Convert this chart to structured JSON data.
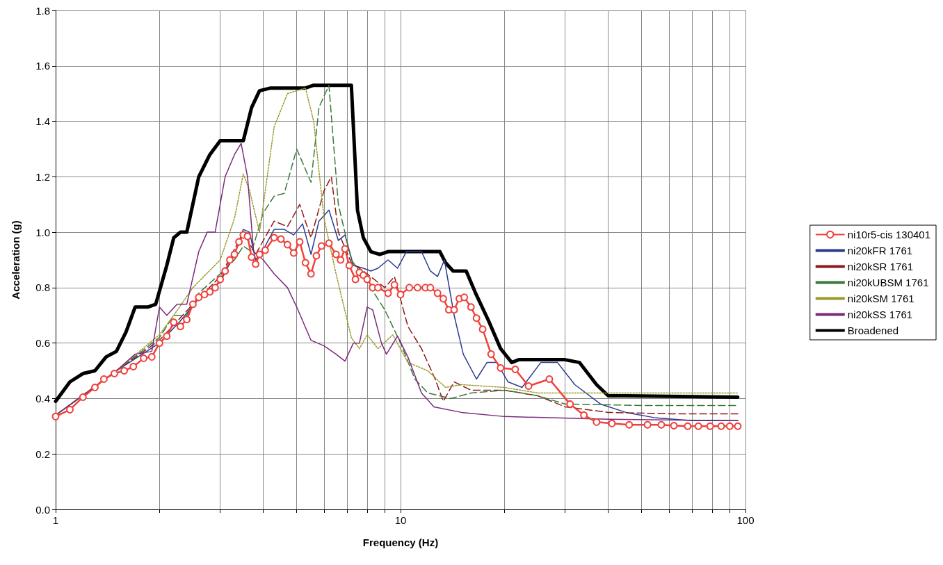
{
  "chart_data": {
    "type": "line",
    "xlabel": "Frequency (Hz)",
    "ylabel": "Acceleration (g)",
    "log": "x",
    "grid": true,
    "legend": "right",
    "xlim": [
      1,
      100
    ],
    "ylim": [
      0,
      1.8
    ],
    "xticks": [
      1,
      {
        "value": 2,
        "label": null
      },
      {
        "value": 3,
        "label": null
      },
      {
        "value": 4,
        "label": null
      },
      {
        "value": 5,
        "label": null
      },
      {
        "value": 6,
        "label": null
      },
      {
        "value": 7,
        "label": null
      },
      {
        "value": 8,
        "label": null
      },
      {
        "value": 9,
        "label": null
      },
      10,
      {
        "value": 20,
        "label": null
      },
      {
        "value": 30,
        "label": null
      },
      {
        "value": 40,
        "label": null
      },
      {
        "value": 50,
        "label": null
      },
      {
        "value": 60,
        "label": null
      },
      {
        "value": 70,
        "label": null
      },
      {
        "value": 80,
        "label": null
      },
      {
        "value": 90,
        "label": null
      },
      100
    ],
    "yticks": [
      {
        "value": 0,
        "label": "0.0"
      },
      {
        "value": 0.2,
        "label": "0.2"
      },
      {
        "value": 0.4,
        "label": "0.4"
      },
      {
        "value": 0.6,
        "label": "0.6"
      },
      {
        "value": 0.8,
        "label": "0.8"
      },
      {
        "value": 1.0,
        "label": "1.0"
      },
      {
        "value": 1.2,
        "label": "1.2"
      },
      {
        "value": 1.4,
        "label": "1.4"
      },
      {
        "value": 1.6,
        "label": "1.6"
      },
      {
        "value": 1.8,
        "label": "1.8"
      }
    ],
    "series": [
      {
        "name": "ni10r5-cis 130401",
        "color": "#f0403a",
        "marker": "circle",
        "line_style": "solid",
        "x": [
          1,
          1.1,
          1.2,
          1.3,
          1.38,
          1.48,
          1.58,
          1.68,
          1.8,
          1.9,
          2.0,
          2.1,
          2.2,
          2.3,
          2.4,
          2.5,
          2.6,
          2.7,
          2.8,
          2.9,
          3.0,
          3.1,
          3.2,
          3.3,
          3.4,
          3.5,
          3.6,
          3.7,
          3.8,
          3.9,
          4.05,
          4.3,
          4.5,
          4.7,
          4.9,
          5.1,
          5.3,
          5.5,
          5.7,
          5.9,
          6.2,
          6.5,
          6.7,
          6.9,
          7.1,
          7.4,
          7.6,
          7.8,
          8.0,
          8.3,
          8.6,
          9.2,
          9.6,
          10,
          10.6,
          11.2,
          11.8,
          12.2,
          12.8,
          13.3,
          13.8,
          14.3,
          14.8,
          15.3,
          16,
          16.6,
          17.3,
          18.3,
          19.5,
          21.5,
          23.5,
          27,
          31,
          34,
          37,
          41,
          46,
          52,
          57,
          62,
          68,
          73,
          79,
          85,
          90,
          95
        ],
        "values": [
          0.335,
          0.36,
          0.405,
          0.44,
          0.47,
          0.49,
          0.5,
          0.515,
          0.545,
          0.55,
          0.6,
          0.625,
          0.675,
          0.66,
          0.685,
          0.74,
          0.765,
          0.775,
          0.785,
          0.8,
          0.83,
          0.86,
          0.9,
          0.92,
          0.965,
          0.99,
          0.985,
          0.91,
          0.885,
          0.92,
          0.935,
          0.98,
          0.975,
          0.955,
          0.925,
          0.965,
          0.89,
          0.85,
          0.915,
          0.95,
          0.96,
          0.92,
          0.9,
          0.94,
          0.88,
          0.83,
          0.855,
          0.845,
          0.83,
          0.8,
          0.8,
          0.78,
          0.81,
          0.775,
          0.8,
          0.8,
          0.8,
          0.8,
          0.78,
          0.76,
          0.72,
          0.72,
          0.76,
          0.765,
          0.73,
          0.69,
          0.65,
          0.56,
          0.51,
          0.505,
          0.445,
          0.47,
          0.38,
          0.34,
          0.315,
          0.31,
          0.305,
          0.305,
          0.305,
          0.302,
          0.3,
          0.3,
          0.3,
          0.3,
          0.3,
          0.3
        ]
      },
      {
        "name": "ni20kFR 1761",
        "color": "#2b3a8f",
        "marker": "none",
        "line_style": "solid",
        "x": [
          1,
          1.2,
          1.5,
          2,
          2.3,
          2.6,
          3,
          3.3,
          3.5,
          3.65,
          3.8,
          4.05,
          4.3,
          4.6,
          4.9,
          5.2,
          5.5,
          5.8,
          6.2,
          6.6,
          6.9,
          7.3,
          7.8,
          8.2,
          8.6,
          9.2,
          9.8,
          10.4,
          11.5,
          12.2,
          12.8,
          13.4,
          14.3,
          15.2,
          16.6,
          17.8,
          19,
          20.5,
          22.5,
          25.5,
          28.5,
          32,
          38,
          45,
          55,
          70,
          95
        ],
        "values": [
          0.34,
          0.41,
          0.5,
          0.6,
          0.68,
          0.76,
          0.82,
          0.92,
          1.01,
          1.0,
          0.9,
          0.95,
          1.01,
          1.01,
          0.99,
          1.03,
          0.92,
          1.04,
          1.08,
          0.97,
          0.99,
          0.88,
          0.87,
          0.86,
          0.87,
          0.9,
          0.87,
          0.93,
          0.93,
          0.86,
          0.84,
          0.9,
          0.7,
          0.56,
          0.47,
          0.53,
          0.53,
          0.46,
          0.44,
          0.53,
          0.53,
          0.45,
          0.38,
          0.35,
          0.33,
          0.32,
          0.32
        ]
      },
      {
        "name": "ni20kSR 1761",
        "color": "#8b1a1a",
        "marker": "none",
        "line_style": "dashed",
        "x": [
          1,
          1.5,
          2,
          2.5,
          3,
          3.5,
          3.8,
          4.3,
          4.7,
          5.1,
          5.5,
          6.0,
          6.3,
          6.6,
          7.2,
          8,
          9,
          9.6,
          10.5,
          11.5,
          12.6,
          13.3,
          14.3,
          16,
          20,
          25,
          30,
          40,
          60,
          95
        ],
        "values": [
          0.34,
          0.5,
          0.61,
          0.74,
          0.84,
          1.0,
          0.92,
          1.04,
          1.02,
          1.1,
          0.98,
          1.15,
          1.2,
          1.0,
          0.89,
          0.85,
          0.8,
          0.84,
          0.66,
          0.58,
          0.47,
          0.39,
          0.46,
          0.43,
          0.43,
          0.41,
          0.37,
          0.35,
          0.345,
          0.345
        ]
      },
      {
        "name": "ni20kUBSM 1761",
        "color": "#3a7a3a",
        "marker": "none",
        "line_style": "dashed",
        "x": [
          1,
          1.5,
          2,
          2.2,
          2.4,
          2.6,
          3,
          3.3,
          3.5,
          3.7,
          4.0,
          4.3,
          4.6,
          5.0,
          5.5,
          5.8,
          6.2,
          6.6,
          7.2,
          8,
          9,
          10,
          11,
          12,
          14,
          16,
          20,
          25,
          30,
          50,
          95
        ],
        "values": [
          0.34,
          0.5,
          0.62,
          0.7,
          0.7,
          0.78,
          0.85,
          0.9,
          0.95,
          0.93,
          1.07,
          1.13,
          1.14,
          1.3,
          1.18,
          1.45,
          1.53,
          1.1,
          0.9,
          0.82,
          0.72,
          0.6,
          0.47,
          0.42,
          0.4,
          0.42,
          0.43,
          0.41,
          0.38,
          0.375,
          0.375
        ]
      },
      {
        "name": "ni20kSM 1761",
        "color": "#9a9a2a",
        "marker": "none",
        "line_style": "dotted",
        "x": [
          1,
          1.5,
          2,
          2.2,
          2.5,
          3,
          3.3,
          3.5,
          3.65,
          3.9,
          4.3,
          4.7,
          5.3,
          5.6,
          6.0,
          6.5,
          7.2,
          7.6,
          8,
          8.6,
          9.5,
          10.5,
          12,
          13.5,
          15,
          20,
          25,
          40,
          95
        ],
        "values": [
          0.34,
          0.5,
          0.63,
          0.7,
          0.8,
          0.9,
          1.05,
          1.21,
          1.15,
          1.0,
          1.38,
          1.5,
          1.52,
          1.4,
          1.05,
          0.85,
          0.62,
          0.58,
          0.63,
          0.58,
          0.63,
          0.53,
          0.5,
          0.44,
          0.45,
          0.44,
          0.42,
          0.42,
          0.42
        ]
      },
      {
        "name": "ni20kSS 1761",
        "color": "#7a2a7a",
        "marker": "none",
        "line_style": "solid",
        "x": [
          1,
          1.5,
          1.7,
          1.9,
          2.0,
          2.1,
          2.25,
          2.4,
          2.6,
          2.75,
          2.9,
          3.1,
          3.3,
          3.45,
          3.6,
          3.75,
          4.0,
          4.3,
          4.7,
          5.0,
          5.5,
          6.0,
          6.5,
          6.9,
          7.3,
          7.6,
          8.0,
          8.3,
          8.8,
          9.1,
          9.8,
          10.5,
          11.5,
          12.5,
          15,
          20,
          40,
          95
        ],
        "values": [
          0.34,
          0.5,
          0.56,
          0.57,
          0.73,
          0.7,
          0.74,
          0.74,
          0.93,
          1.0,
          1.0,
          1.2,
          1.28,
          1.32,
          1.2,
          0.93,
          0.9,
          0.85,
          0.8,
          0.73,
          0.61,
          0.59,
          0.56,
          0.535,
          0.6,
          0.6,
          0.73,
          0.72,
          0.6,
          0.56,
          0.625,
          0.55,
          0.42,
          0.37,
          0.35,
          0.335,
          0.325,
          0.32
        ]
      },
      {
        "name": "Broadened",
        "color": "#000000",
        "marker": "none",
        "line_style": "solid",
        "x": [
          1,
          1.1,
          1.2,
          1.3,
          1.4,
          1.5,
          1.6,
          1.7,
          1.85,
          1.95,
          2.1,
          2.2,
          2.3,
          2.4,
          2.6,
          2.8,
          3.0,
          3.5,
          3.7,
          3.9,
          4.2,
          5.3,
          5.6,
          7.2,
          7.5,
          7.8,
          8.2,
          8.7,
          9.2,
          13,
          13.5,
          14.2,
          15.5,
          16.5,
          18,
          19.5,
          21,
          22,
          30,
          33,
          37,
          40,
          45,
          95
        ],
        "values": [
          0.39,
          0.46,
          0.49,
          0.5,
          0.55,
          0.57,
          0.64,
          0.73,
          0.73,
          0.74,
          0.88,
          0.98,
          1.0,
          1.0,
          1.2,
          1.28,
          1.33,
          1.33,
          1.45,
          1.51,
          1.52,
          1.52,
          1.53,
          1.53,
          1.08,
          0.98,
          0.93,
          0.92,
          0.93,
          0.93,
          0.89,
          0.86,
          0.86,
          0.78,
          0.68,
          0.58,
          0.53,
          0.54,
          0.54,
          0.53,
          0.45,
          0.41,
          0.41,
          0.405
        ]
      }
    ]
  }
}
